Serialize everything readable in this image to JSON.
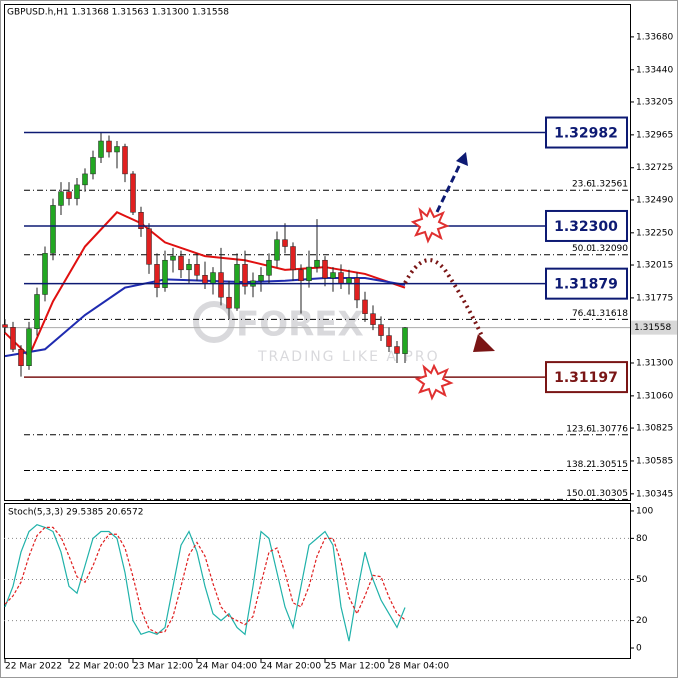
{
  "chart_data": [
    {
      "type": "candlestick",
      "title": "GBPUSD.h,H1  1.31368 1.31563 1.31300 1.31558",
      "x": [
        0,
        2,
        4,
        6,
        8,
        10,
        12,
        14,
        16,
        18,
        20,
        22,
        24,
        26,
        28,
        30,
        32,
        34,
        36,
        38,
        40,
        42,
        44,
        46,
        48,
        50,
        52,
        54,
        56,
        58,
        60,
        62,
        64,
        66,
        68,
        70,
        72,
        74,
        76,
        78,
        80,
        82,
        84,
        86,
        88,
        90,
        92,
        94,
        96,
        98,
        100
      ],
      "open": [
        1.3158,
        1.3156,
        1.314,
        1.3128,
        1.3155,
        1.318,
        1.321,
        1.3245,
        1.3255,
        1.325,
        1.326,
        1.3268,
        1.328,
        1.3292,
        1.3284,
        1.3288,
        1.3268,
        1.324,
        1.3228,
        1.3202,
        1.3185,
        1.3205,
        1.3208,
        1.3198,
        1.3202,
        1.3194,
        1.3188,
        1.3196,
        1.3178,
        1.317,
        1.3202,
        1.3186,
        1.319,
        1.3194,
        1.3205,
        1.322,
        1.3215,
        1.3198,
        1.319,
        1.32,
        1.3205,
        1.3192,
        1.3196,
        1.3188,
        1.3192,
        1.3176,
        1.3166,
        1.3158,
        1.315,
        1.3142,
        1.31368
      ],
      "high": [
        1.3162,
        1.316,
        1.3143,
        1.316,
        1.3185,
        1.3215,
        1.325,
        1.3262,
        1.3262,
        1.3265,
        1.3272,
        1.3285,
        1.3298,
        1.3296,
        1.3292,
        1.329,
        1.327,
        1.3244,
        1.3232,
        1.321,
        1.3212,
        1.3214,
        1.3212,
        1.3206,
        1.321,
        1.3204,
        1.32,
        1.3214,
        1.319,
        1.321,
        1.3212,
        1.3196,
        1.32,
        1.321,
        1.3226,
        1.3232,
        1.3218,
        1.3202,
        1.3212,
        1.3235,
        1.3208,
        1.32,
        1.3202,
        1.3198,
        1.3196,
        1.3182,
        1.3172,
        1.3164,
        1.3156,
        1.3146,
        1.31563
      ],
      "low": [
        1.3152,
        1.3138,
        1.312,
        1.3125,
        1.315,
        1.3175,
        1.3205,
        1.3238,
        1.3245,
        1.3245,
        1.3255,
        1.3264,
        1.3276,
        1.328,
        1.3272,
        1.3262,
        1.3238,
        1.3222,
        1.3195,
        1.3178,
        1.3182,
        1.3196,
        1.3192,
        1.3188,
        1.319,
        1.3184,
        1.318,
        1.3172,
        1.3162,
        1.3168,
        1.318,
        1.3178,
        1.3182,
        1.3188,
        1.32,
        1.321,
        1.319,
        1.3166,
        1.3185,
        1.3196,
        1.3186,
        1.3182,
        1.3184,
        1.318,
        1.317,
        1.316,
        1.3154,
        1.3146,
        1.3138,
        1.313,
        1.313
      ],
      "close": [
        1.3156,
        1.314,
        1.3128,
        1.3155,
        1.318,
        1.321,
        1.3245,
        1.3255,
        1.325,
        1.326,
        1.3268,
        1.328,
        1.3292,
        1.3284,
        1.3288,
        1.3268,
        1.324,
        1.3228,
        1.3202,
        1.3185,
        1.3205,
        1.3208,
        1.3198,
        1.3202,
        1.3194,
        1.3188,
        1.3196,
        1.3178,
        1.317,
        1.3202,
        1.3186,
        1.319,
        1.3194,
        1.3205,
        1.322,
        1.3215,
        1.3198,
        1.319,
        1.32,
        1.3205,
        1.3192,
        1.3196,
        1.3188,
        1.3192,
        1.3176,
        1.3166,
        1.3158,
        1.315,
        1.3142,
        1.3137,
        1.31558
      ],
      "up_color": "#22a722",
      "down_color": "#e02020",
      "overlays": [
        {
          "color": "#e01010",
          "x": [
            0,
            6,
            12,
            20,
            28,
            34,
            40,
            50,
            60,
            70,
            80,
            90,
            100
          ],
          "values": [
            1.3152,
            1.3135,
            1.3175,
            1.3215,
            1.324,
            1.3232,
            1.3218,
            1.3208,
            1.3205,
            1.3198,
            1.32,
            1.3195,
            1.3185
          ]
        },
        {
          "color": "#1f2bb0",
          "x": [
            0,
            10,
            20,
            30,
            40,
            50,
            60,
            70,
            80,
            90,
            100
          ],
          "values": [
            1.3135,
            1.314,
            1.3165,
            1.3185,
            1.3191,
            1.319,
            1.3189,
            1.319,
            1.3192,
            1.3192,
            1.3187
          ]
        }
      ],
      "levels": [
        {
          "value": 1.32982,
          "label": "1.32982",
          "color": "#0d1a73"
        },
        {
          "value": 1.323,
          "label": "1.32300",
          "color": "#0d1a73"
        },
        {
          "value": 1.31879,
          "label": "1.31879",
          "color": "#0d1a73"
        },
        {
          "value": 1.31197,
          "label": "1.31197",
          "color": "#7a1515"
        }
      ],
      "fib_levels": [
        {
          "value": 1.32561,
          "label": "1.32561",
          "ratio": "23.6"
        },
        {
          "value": 1.3209,
          "label": "1.32090",
          "ratio": "50.0"
        },
        {
          "value": 1.31618,
          "label": "1.31618",
          "ratio": "76.4"
        },
        {
          "value": 1.30776,
          "label": "1.30776",
          "ratio": "123.6"
        },
        {
          "value": 1.30515,
          "label": "1.30515",
          "ratio": "138.2"
        },
        {
          "value": 1.30305,
          "label": "1.30305",
          "ratio": "150.0"
        }
      ],
      "last_price": {
        "value": 1.31558,
        "label": "1.31558"
      },
      "watermark": {
        "brand": "FOREX",
        "slogan": "TRADING LIKE A PRO"
      },
      "xlim": [
        -0.25,
        156.25
      ],
      "xticks": [
        {
          "value": 0,
          "label": "22 Mar 2022"
        },
        {
          "value": 16,
          "label": "22 Mar 20:00"
        },
        {
          "value": 32,
          "label": "23 Mar 12:00"
        },
        {
          "value": 48,
          "label": "24 Mar 04:00"
        },
        {
          "value": 64,
          "label": "24 Mar 20:00"
        },
        {
          "value": 80,
          "label": "25 Mar 12:00"
        },
        {
          "value": 96,
          "label": "28 Mar 04:00"
        }
      ],
      "ylim": [
        1.303,
        1.3392
      ],
      "yticks": [
        {
          "value": 1.3368,
          "label": "1.33680"
        },
        {
          "value": 1.3344,
          "label": "1.33440"
        },
        1.33205,
        1.32965,
        1.32725,
        {
          "value": 1.3249,
          "label": "1.32490"
        },
        {
          "value": 1.3225,
          "label": "1.32250"
        },
        1.32015,
        1.31775,
        {
          "value": 1.313,
          "label": "1.31300"
        },
        {
          "value": 1.3106,
          "label": "1.31060"
        },
        1.30825,
        1.30585,
        1.30345
      ]
    },
    {
      "type": "line",
      "title": "Stoch(5,3,3) 29.5385 20.6572",
      "series": [
        {
          "color": "#20b2aa",
          "values": [
            30,
            45,
            70,
            85,
            90,
            88,
            85,
            70,
            45,
            40,
            60,
            80,
            85,
            85,
            80,
            55,
            20,
            10,
            12,
            10,
            15,
            45,
            75,
            85,
            70,
            45,
            25,
            20,
            25,
            15,
            10,
            45,
            85,
            80,
            55,
            30,
            15,
            45,
            75,
            80,
            85,
            75,
            30,
            5,
            40,
            70,
            50,
            35,
            25,
            15,
            29.5385
          ]
        },
        {
          "color": "#e02020",
          "dashed": true,
          "values": [
            32,
            38,
            48,
            67,
            82,
            88,
            88,
            81,
            67,
            52,
            48,
            60,
            75,
            83,
            83,
            73,
            52,
            28,
            14,
            11,
            12,
            23,
            45,
            68,
            77,
            67,
            47,
            30,
            23,
            20,
            17,
            23,
            47,
            70,
            73,
            55,
            33,
            30,
            45,
            67,
            80,
            80,
            63,
            37,
            25,
            38,
            53,
            52,
            37,
            25,
            20.6572
          ]
        }
      ],
      "ylim": [
        -7.3,
        105.8
      ],
      "yticks": [
        0,
        20,
        50,
        80,
        100
      ],
      "grid": true
    }
  ]
}
